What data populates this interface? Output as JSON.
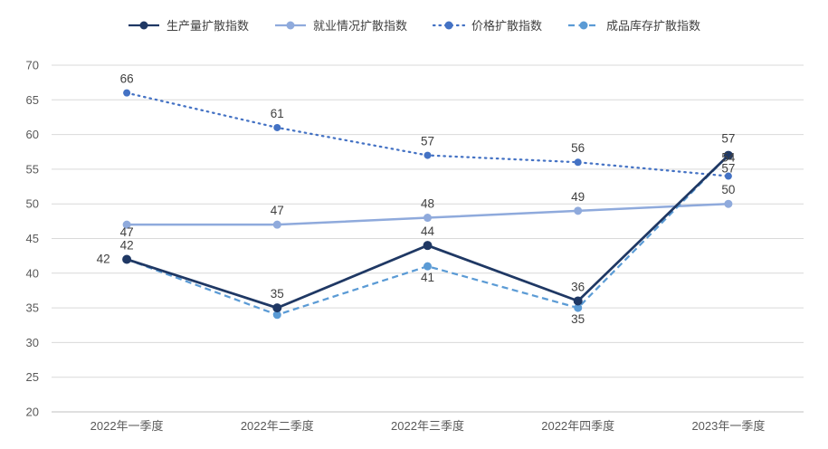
{
  "chart_data": {
    "type": "line",
    "title": "",
    "xlabel": "",
    "ylabel": "",
    "categories": [
      "2022年一季度",
      "2022年二季度",
      "2022年三季度",
      "2022年四季度",
      "2023年一季度"
    ],
    "series": [
      {
        "name": "生产量扩散指数",
        "values": [
          42,
          35,
          44,
          36,
          57
        ],
        "color": "#1F3864",
        "line_style": "solid"
      },
      {
        "name": "就业情况扩散指数",
        "values": [
          47,
          47,
          48,
          49,
          50
        ],
        "color": "#8FAADC",
        "line_style": "solid"
      },
      {
        "name": "价格扩散指数",
        "values": [
          66,
          61,
          57,
          56,
          54
        ],
        "color": "#4472C4",
        "line_style": "dotted"
      },
      {
        "name": "成品库存扩散指数",
        "values": [
          42,
          34,
          41,
          35,
          57
        ],
        "color": "#5B9BD5",
        "line_style": "dashed"
      }
    ],
    "ylim": [
      20,
      70
    ],
    "ytick_step": 5,
    "yticks": [
      20,
      25,
      30,
      35,
      40,
      45,
      50,
      55,
      60,
      65,
      70
    ],
    "grid": true,
    "legend_position": "top",
    "marker": "circle"
  },
  "style": {
    "grid_color": "#D9D9D9",
    "axis_line_color": "#BFBFBF",
    "tick_label_color": "#595959",
    "data_label_color": "#404040",
    "background": "#FFFFFF"
  }
}
